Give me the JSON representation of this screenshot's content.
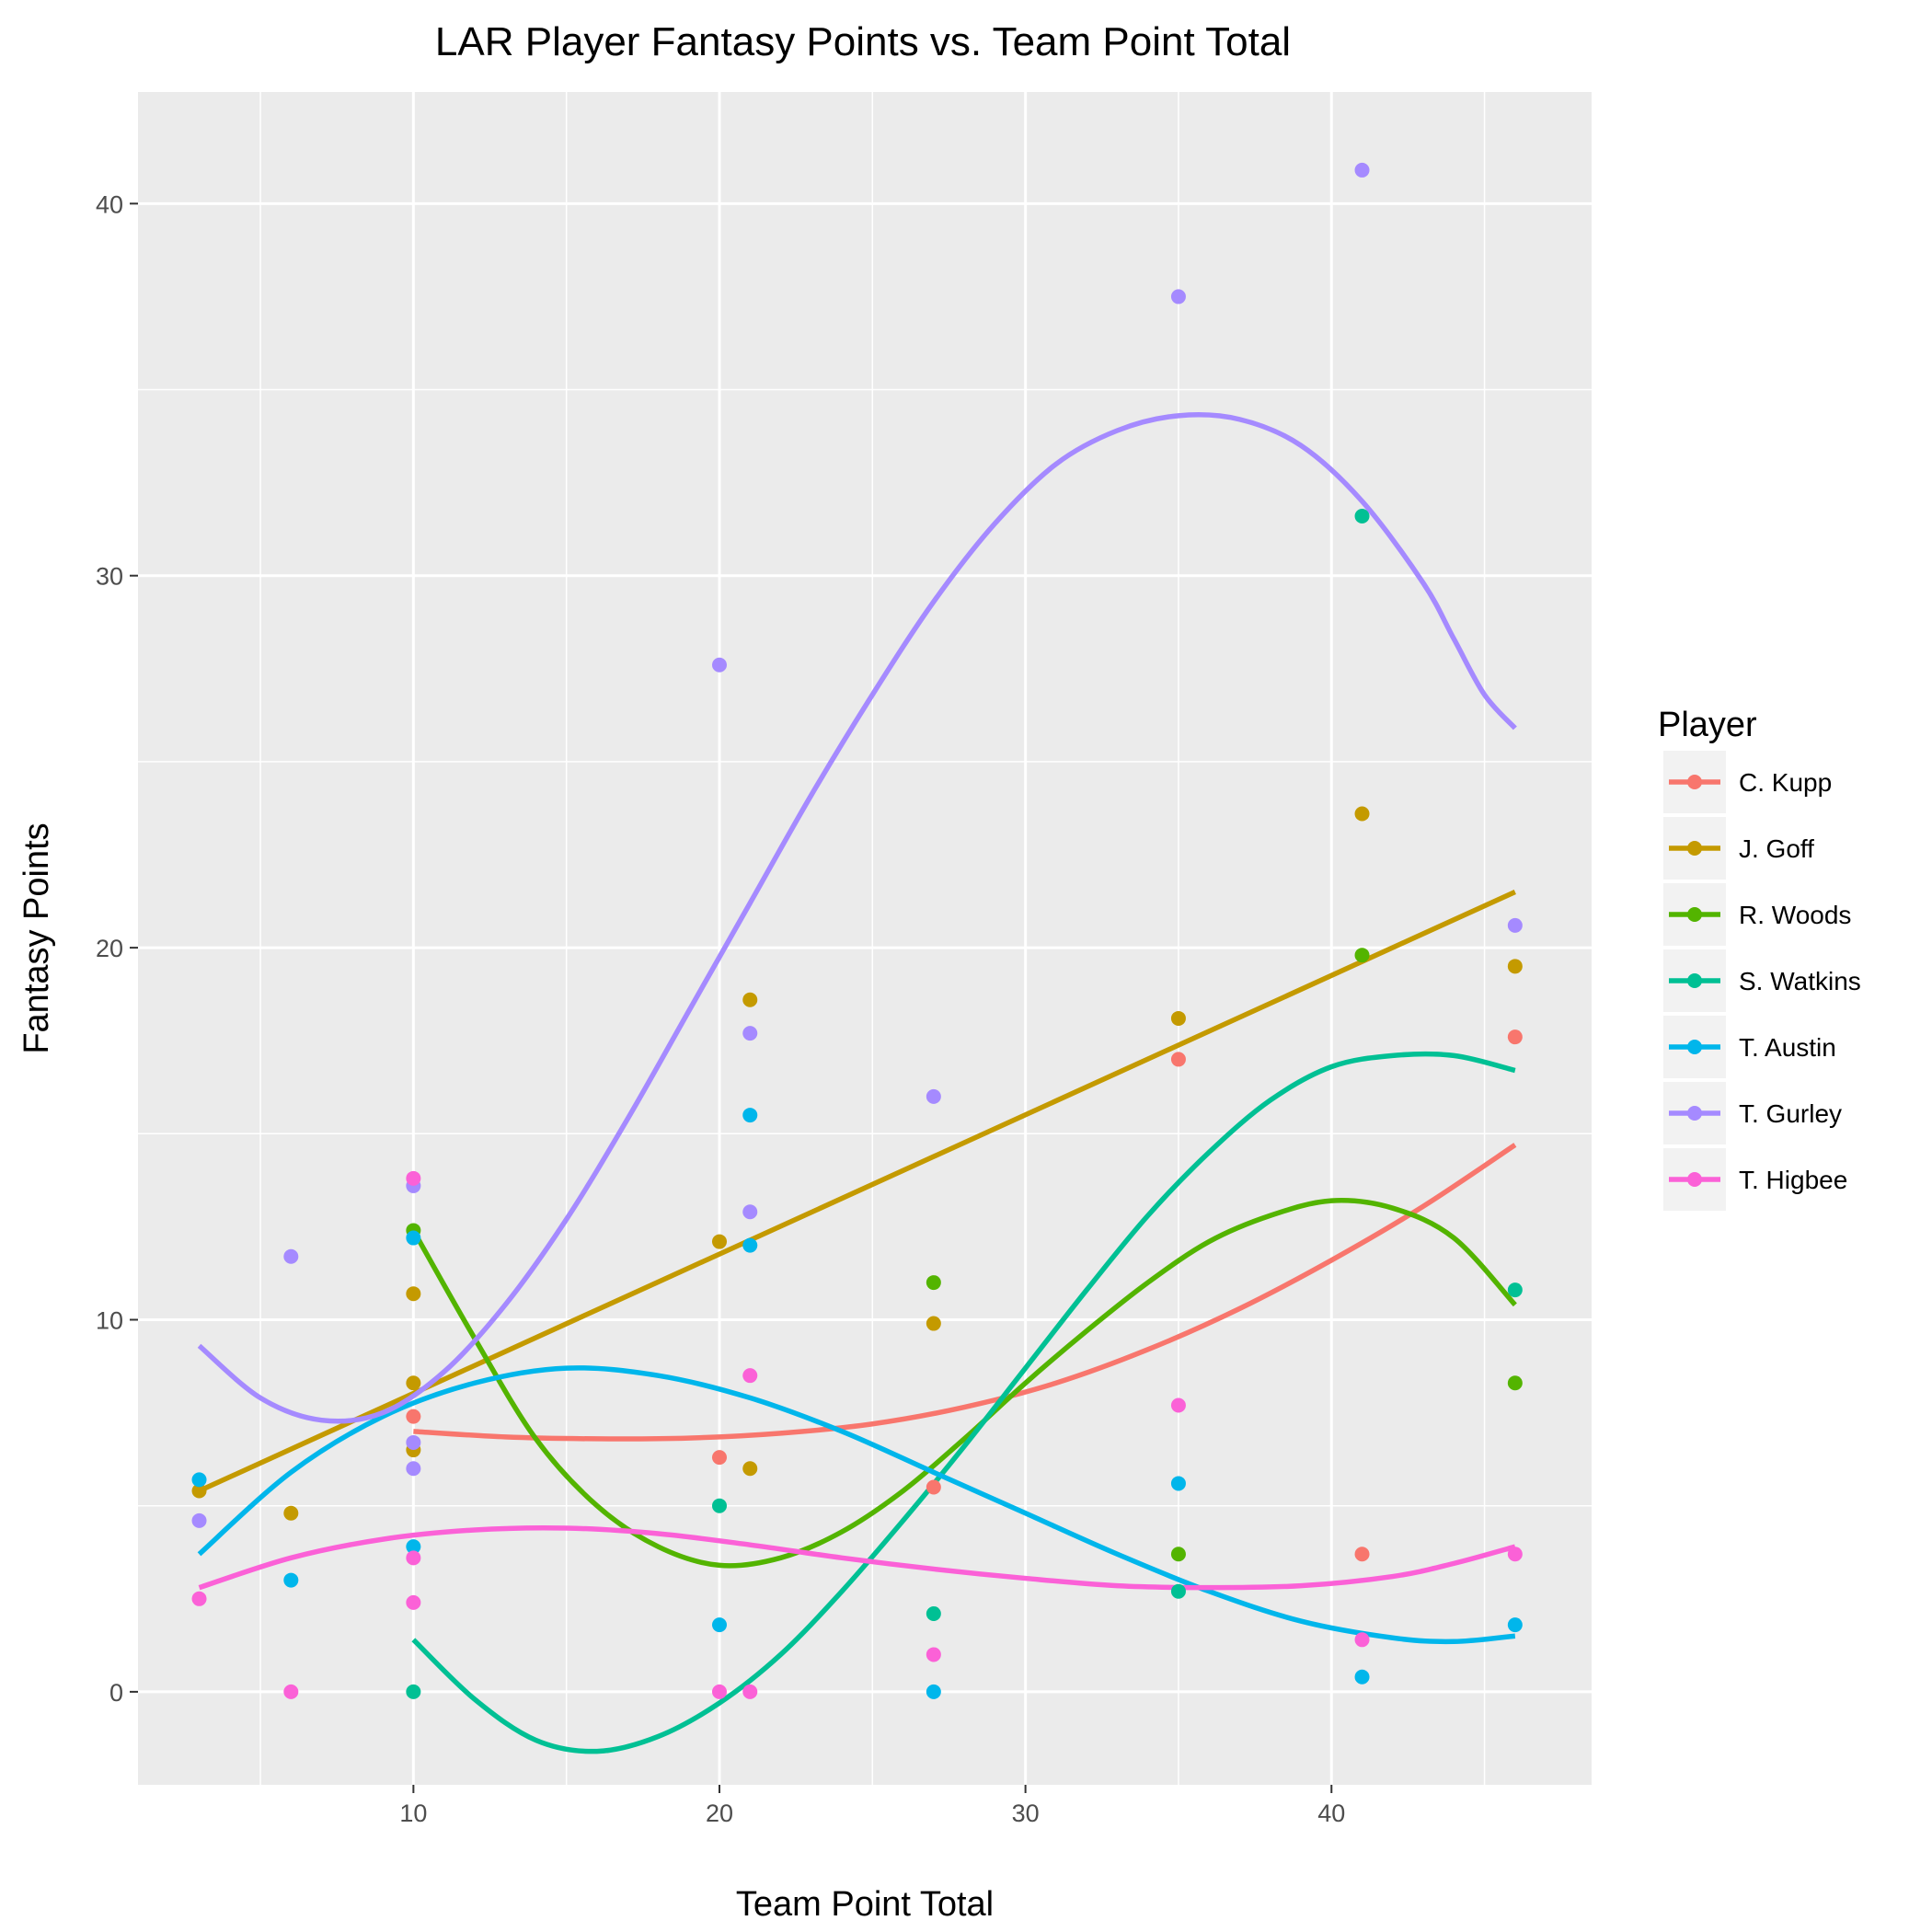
{
  "chart_data": {
    "type": "scatter",
    "title": "LAR Player Fantasy Points vs. Team Point Total",
    "xlabel": "Team Point Total",
    "ylabel": "Fantasy Points",
    "xlim": [
      1,
      48.5
    ],
    "ylim": [
      -2.5,
      43
    ],
    "xticks": [
      10,
      20,
      30,
      40
    ],
    "yticks": [
      0,
      10,
      20,
      30,
      40
    ],
    "grid": true,
    "legend_title": "Player",
    "legend_position": "right",
    "series": [
      {
        "name": "C. Kupp",
        "color": "#F8766D",
        "points": [
          [
            10,
            7.4
          ],
          [
            20,
            6.3
          ],
          [
            27,
            5.5
          ],
          [
            35,
            17
          ],
          [
            41,
            3.7
          ],
          [
            46,
            17.6
          ]
        ],
        "trend": [
          [
            10,
            7.0
          ],
          [
            13,
            6.85
          ],
          [
            16,
            6.8
          ],
          [
            19,
            6.82
          ],
          [
            22,
            6.95
          ],
          [
            25,
            7.2
          ],
          [
            28,
            7.65
          ],
          [
            31,
            8.3
          ],
          [
            34,
            9.2
          ],
          [
            37,
            10.3
          ],
          [
            40,
            11.6
          ],
          [
            43,
            13.05
          ],
          [
            46,
            14.7
          ]
        ]
      },
      {
        "name": "J. Goff",
        "color": "#C49A00",
        "points": [
          [
            3,
            5.4
          ],
          [
            6,
            4.8
          ],
          [
            10,
            10.7
          ],
          [
            10,
            8.3
          ],
          [
            10,
            6.5
          ],
          [
            20,
            12.1
          ],
          [
            21,
            18.6
          ],
          [
            21,
            6.0
          ],
          [
            27,
            9.9
          ],
          [
            35,
            18.1
          ],
          [
            41,
            23.6
          ],
          [
            46,
            19.5
          ]
        ],
        "trend": [
          [
            3,
            5.4
          ],
          [
            46,
            21.5
          ]
        ]
      },
      {
        "name": "R. Woods",
        "color": "#53B400",
        "points": [
          [
            10,
            12.4
          ],
          [
            27,
            11.0
          ],
          [
            35,
            3.7
          ],
          [
            41,
            19.8
          ],
          [
            46,
            8.3
          ]
        ],
        "trend": [
          [
            10,
            12.4
          ],
          [
            12,
            9.5
          ],
          [
            14,
            6.8
          ],
          [
            16,
            5.0
          ],
          [
            18,
            3.9
          ],
          [
            20,
            3.4
          ],
          [
            22,
            3.6
          ],
          [
            24,
            4.3
          ],
          [
            26,
            5.4
          ],
          [
            28,
            6.8
          ],
          [
            30,
            8.3
          ],
          [
            32,
            9.7
          ],
          [
            34,
            11.0
          ],
          [
            36,
            12.1
          ],
          [
            38,
            12.8
          ],
          [
            40,
            13.2
          ],
          [
            42,
            13.0
          ],
          [
            44,
            12.2
          ],
          [
            46,
            10.4
          ]
        ]
      },
      {
        "name": "S. Watkins",
        "color": "#00C094",
        "points": [
          [
            10,
            0.0
          ],
          [
            20,
            5.0
          ],
          [
            27,
            2.1
          ],
          [
            35,
            2.7
          ],
          [
            41,
            31.6
          ],
          [
            46,
            10.8
          ]
        ],
        "trend": [
          [
            10,
            1.4
          ],
          [
            12,
            -0.2
          ],
          [
            14,
            -1.3
          ],
          [
            16,
            -1.6
          ],
          [
            18,
            -1.2
          ],
          [
            20,
            -0.3
          ],
          [
            22,
            1.0
          ],
          [
            24,
            2.7
          ],
          [
            26,
            4.6
          ],
          [
            28,
            6.6
          ],
          [
            30,
            8.7
          ],
          [
            32,
            10.8
          ],
          [
            34,
            12.8
          ],
          [
            36,
            14.5
          ],
          [
            38,
            15.9
          ],
          [
            40,
            16.8
          ],
          [
            42,
            17.1
          ],
          [
            44,
            17.1
          ],
          [
            46,
            16.7
          ]
        ]
      },
      {
        "name": "T. Austin",
        "color": "#00B6EB",
        "points": [
          [
            3,
            5.7
          ],
          [
            6,
            3.0
          ],
          [
            10,
            12.2
          ],
          [
            10,
            3.9
          ],
          [
            20,
            1.8
          ],
          [
            21,
            15.5
          ],
          [
            21,
            12.0
          ],
          [
            27,
            0.0
          ],
          [
            35,
            5.6
          ],
          [
            41,
            0.4
          ],
          [
            46,
            1.8
          ]
        ],
        "trend": [
          [
            3,
            3.7
          ],
          [
            6,
            5.9
          ],
          [
            9,
            7.4
          ],
          [
            12,
            8.3
          ],
          [
            15,
            8.7
          ],
          [
            18,
            8.5
          ],
          [
            21,
            7.9
          ],
          [
            24,
            7.0
          ],
          [
            27,
            5.9
          ],
          [
            30,
            4.8
          ],
          [
            33,
            3.7
          ],
          [
            36,
            2.7
          ],
          [
            39,
            1.9
          ],
          [
            42,
            1.45
          ],
          [
            44,
            1.35
          ],
          [
            46,
            1.5
          ]
        ]
      },
      {
        "name": "T. Gurley",
        "color": "#A58AFF",
        "points": [
          [
            3,
            4.6
          ],
          [
            6,
            11.7
          ],
          [
            10,
            13.6
          ],
          [
            10,
            6.7
          ],
          [
            10,
            6.0
          ],
          [
            20,
            27.6
          ],
          [
            21,
            17.7
          ],
          [
            21,
            12.9
          ],
          [
            27,
            16.0
          ],
          [
            35,
            37.5
          ],
          [
            41,
            40.9
          ],
          [
            46,
            20.6
          ]
        ],
        "trend": [
          [
            3,
            9.3
          ],
          [
            5,
            7.9
          ],
          [
            7,
            7.3
          ],
          [
            9,
            7.5
          ],
          [
            11,
            8.6
          ],
          [
            13,
            10.4
          ],
          [
            15,
            12.7
          ],
          [
            17,
            15.4
          ],
          [
            19,
            18.3
          ],
          [
            21,
            21.2
          ],
          [
            23,
            24.1
          ],
          [
            25,
            26.8
          ],
          [
            27,
            29.3
          ],
          [
            29,
            31.4
          ],
          [
            31,
            33.0
          ],
          [
            33,
            33.9
          ],
          [
            35,
            34.3
          ],
          [
            37,
            34.2
          ],
          [
            39,
            33.5
          ],
          [
            41,
            32.0
          ],
          [
            43,
            29.8
          ],
          [
            44,
            28.3
          ],
          [
            45,
            26.8
          ],
          [
            46,
            25.9
          ]
        ]
      },
      {
        "name": "T. Higbee",
        "color": "#FB61D7",
        "points": [
          [
            3,
            2.5
          ],
          [
            6,
            0.0
          ],
          [
            10,
            13.8
          ],
          [
            10,
            3.6
          ],
          [
            10,
            2.4
          ],
          [
            20,
            0.0
          ],
          [
            21,
            0.0
          ],
          [
            21,
            8.5
          ],
          [
            27,
            1.0
          ],
          [
            35,
            7.7
          ],
          [
            41,
            1.4
          ],
          [
            46,
            3.7
          ]
        ],
        "trend": [
          [
            3,
            2.8
          ],
          [
            6,
            3.6
          ],
          [
            9,
            4.1
          ],
          [
            12,
            4.35
          ],
          [
            15,
            4.4
          ],
          [
            18,
            4.25
          ],
          [
            21,
            3.95
          ],
          [
            24,
            3.6
          ],
          [
            27,
            3.3
          ],
          [
            30,
            3.05
          ],
          [
            33,
            2.85
          ],
          [
            36,
            2.8
          ],
          [
            39,
            2.85
          ],
          [
            42,
            3.1
          ],
          [
            44,
            3.45
          ],
          [
            46,
            3.9
          ]
        ]
      }
    ]
  }
}
